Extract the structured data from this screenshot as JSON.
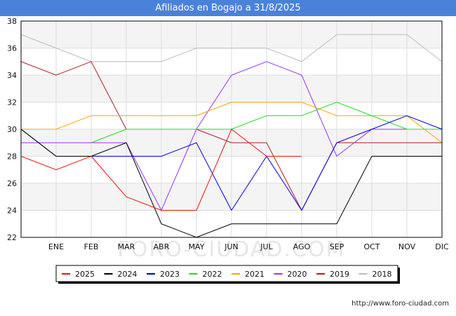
{
  "title": "Afiliados en Bogajo a 31/8/2025",
  "watermark": "FORO-CIUDAD.COM",
  "footer_url": "http://www.foro-ciudad.com",
  "chart_data": {
    "type": "line",
    "title": "Afiliados en Bogajo a 31/8/2025",
    "xlabel": "",
    "ylabel": "",
    "ylim": [
      22,
      38
    ],
    "yticks": [
      22,
      24,
      26,
      28,
      30,
      32,
      34,
      36,
      38
    ],
    "categories": [
      "",
      "ENE",
      "FEB",
      "MAR",
      "ABR",
      "MAY",
      "JUN",
      "JUL",
      "AGO",
      "SEP",
      "OCT",
      "NOV",
      "DIC"
    ],
    "grid": true,
    "legend_position": "bottom",
    "series": [
      {
        "name": "2025",
        "color": "#ee1111",
        "values": [
          28,
          27,
          28,
          25,
          24,
          24,
          30,
          28,
          28,
          null,
          null,
          null,
          null
        ]
      },
      {
        "name": "2024",
        "color": "#000000",
        "values": [
          30,
          28,
          28,
          29,
          23,
          22,
          23,
          23,
          23,
          23,
          28,
          28,
          28
        ]
      },
      {
        "name": "2023",
        "color": "#0000dd",
        "values": [
          30,
          28,
          28,
          28,
          28,
          29,
          24,
          28,
          24,
          29,
          30,
          31,
          30
        ]
      },
      {
        "name": "2022",
        "color": "#22dd22",
        "values": [
          null,
          null,
          29,
          30,
          30,
          30,
          30,
          31,
          31,
          32,
          31,
          30,
          30
        ]
      },
      {
        "name": "2021",
        "color": "#ffa500",
        "values": [
          30,
          30,
          31,
          31,
          31,
          31,
          32,
          32,
          32,
          31,
          31,
          31,
          29
        ]
      },
      {
        "name": "2020",
        "color": "#9933ff",
        "values": [
          29,
          29,
          29,
          29,
          24,
          30,
          34,
          35,
          34,
          28,
          30,
          30,
          30
        ]
      },
      {
        "name": "2019",
        "color": "#aa2222",
        "values": [
          35,
          34,
          35,
          30,
          30,
          30,
          29,
          29,
          24,
          29,
          29,
          29,
          29
        ]
      },
      {
        "name": "2018",
        "color": "#bbbbbb",
        "values": [
          37,
          36,
          35,
          35,
          35,
          36,
          36,
          36,
          35,
          37,
          37,
          37,
          35
        ]
      }
    ]
  }
}
